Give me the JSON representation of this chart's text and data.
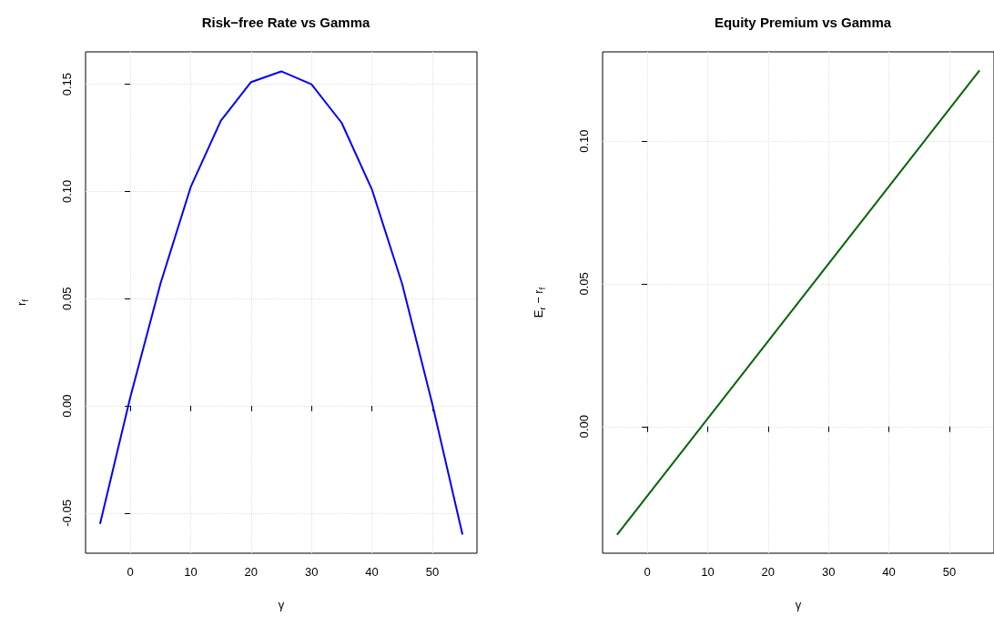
{
  "chart_data": [
    {
      "type": "line",
      "title": "Risk−free Rate vs Gamma",
      "xlabel": "γ",
      "ylabel": "r$_{f}$",
      "x": [
        -5,
        0,
        5,
        10,
        15,
        20,
        25,
        30,
        35,
        40,
        45,
        50,
        55
      ],
      "series": [
        {
          "color": "#0000ff",
          "values": [
            -0.055,
            0.004,
            0.057,
            0.102,
            0.133,
            0.151,
            0.156,
            0.15,
            0.132,
            0.101,
            0.057,
            0.001,
            -0.06
          ]
        }
      ],
      "xlim": [
        -7.4,
        57.4
      ],
      "xticks": [
        0,
        10,
        20,
        30,
        40,
        50
      ],
      "ylim": [
        -0.0687,
        0.1651
      ],
      "yticks": [
        {
          "value": -0.05,
          "label": "-0.05"
        },
        {
          "value": 0,
          "label": "0.00"
        },
        {
          "value": 0.05,
          "label": "0.05"
        },
        {
          "value": 0.1,
          "label": "0.10"
        },
        {
          "value": 0.15,
          "label": "0.15"
        }
      ],
      "grid": true
    },
    {
      "type": "line",
      "title": "Equity Premium vs Gamma",
      "xlabel": "γ",
      "ylabel": "E$_{r}$ − r$_{f}$",
      "x": [
        -5,
        55
      ],
      "series": [
        {
          "color": "#006400",
          "values": [
            -0.0379,
            0.1248
          ]
        }
      ],
      "xlim": [
        -7.4,
        57.4
      ],
      "xticks": [
        0,
        10,
        20,
        30,
        40,
        50
      ],
      "ylim": [
        -0.0444,
        0.1313
      ],
      "yticks": [
        {
          "value": 0,
          "label": "0.00"
        },
        {
          "value": 0.05,
          "label": "0.05"
        },
        {
          "value": 0.1,
          "label": "0.10"
        }
      ],
      "grid": true
    }
  ]
}
